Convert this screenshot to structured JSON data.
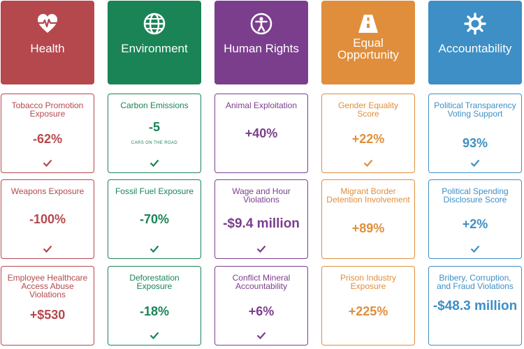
{
  "colors": {
    "health": "#b5484d",
    "environment": "#1a8456",
    "human_rights": "#7b3e8d",
    "equal_opportunity": "#e08e3b",
    "accountability": "#3d8fc5"
  },
  "columns": [
    {
      "key": "health",
      "title": "Health",
      "icon": "heart-pulse-icon",
      "cards": [
        {
          "label": "Tobacco Promotion Exposure",
          "value": "-62%"
        },
        {
          "label": "Weapons Exposure",
          "value": "-100%"
        },
        {
          "label": "Employee Healthcare Access Abuse Violations",
          "value": "+$530"
        }
      ]
    },
    {
      "key": "environment",
      "title": "Environment",
      "icon": "globe-icon",
      "cards": [
        {
          "label": "Carbon Emissions",
          "value": "-5",
          "sub": "CARS ON THE ROAD"
        },
        {
          "label": "Fossil Fuel Exposure",
          "value": "-70%"
        },
        {
          "label": "Deforestation Exposure",
          "value": "-18%"
        }
      ]
    },
    {
      "key": "human_rights",
      "title": "Human Rights",
      "icon": "person-circle-icon",
      "cards": [
        {
          "label": "Animal Exploitation",
          "value": "+40%"
        },
        {
          "label": "Wage and Hour Violations",
          "value": "-$9.4 million"
        },
        {
          "label": "Conflict Mineral Accountability",
          "value": "+6%"
        }
      ]
    },
    {
      "key": "equal_opportunity",
      "title": "Equal Opportunity",
      "icon": "road-icon",
      "cards": [
        {
          "label": "Gender Equality Score",
          "value": "+22%"
        },
        {
          "label": "Migrant Border Detention Involvement",
          "value": "+89%"
        },
        {
          "label": "Prison Industry Exposure",
          "value": "+225%"
        }
      ]
    },
    {
      "key": "accountability",
      "title": "Accountability",
      "icon": "gear-icon",
      "cards": [
        {
          "label": "Political Transparency Voting Support",
          "value": "93%"
        },
        {
          "label": "Political Spending Disclosure Score",
          "value": "+2%"
        },
        {
          "label": "Bribery, Corruption, and Fraud Violations",
          "value": "-$48.3 million"
        }
      ]
    }
  ]
}
